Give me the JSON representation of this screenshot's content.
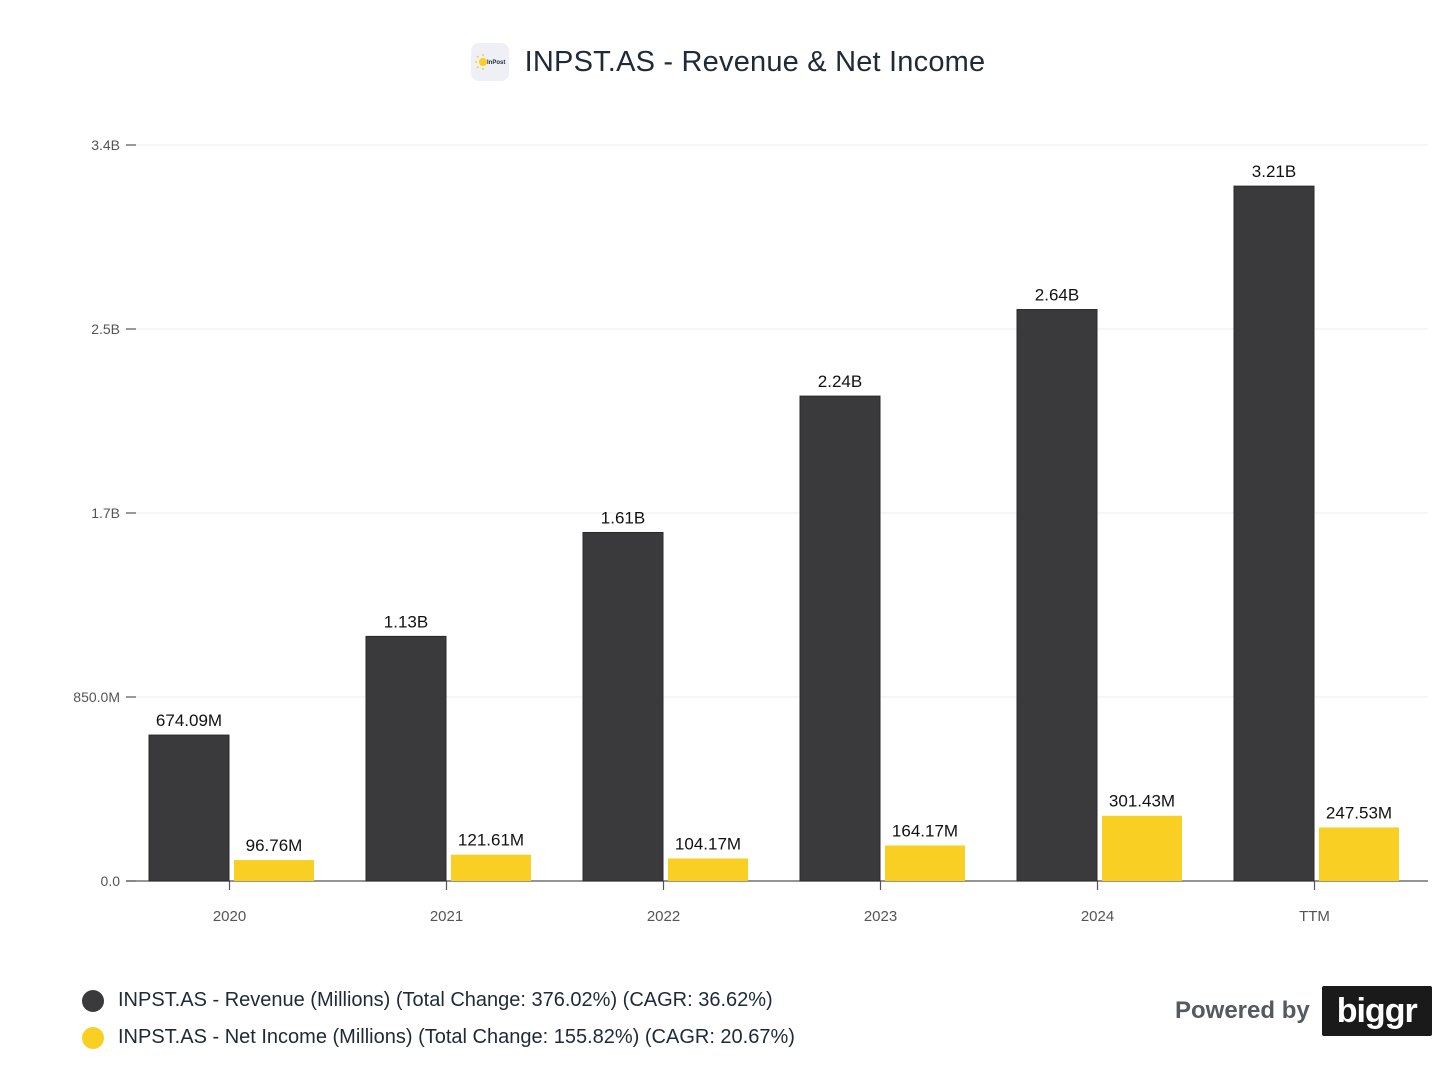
{
  "header": {
    "title": "INPST.AS - Revenue & Net Income",
    "logo_text": "InPost"
  },
  "chart_data": {
    "type": "bar",
    "title": "INPST.AS - Revenue & Net Income",
    "categories": [
      "2020",
      "2021",
      "2022",
      "2023",
      "2024",
      "TTM"
    ],
    "series": [
      {
        "name": "INPST.AS - Revenue (Millions) (Total Change: 376.02%) (CAGR: 36.62%)",
        "color": "#3a3a3c",
        "values": [
          674.09,
          1130,
          1610,
          2240,
          2640,
          3210
        ],
        "labels": [
          "674.09M",
          "1.13B",
          "1.61B",
          "2.24B",
          "2.64B",
          "3.21B"
        ]
      },
      {
        "name": "INPST.AS - Net Income (Millions) (Total Change: 155.82%) (CAGR: 20.67%)",
        "color": "#f9cf23",
        "values": [
          96.76,
          121.61,
          104.17,
          164.17,
          301.43,
          247.53
        ],
        "labels": [
          "96.76M",
          "121.61M",
          "104.17M",
          "164.17M",
          "301.43M",
          "247.53M"
        ]
      }
    ],
    "yticks": [
      0,
      850,
      1700,
      2550,
      3400
    ],
    "ytick_labels": [
      "0.0",
      "850.0M",
      "1.7B",
      "2.5B",
      "3.4B"
    ],
    "ylim": [
      0,
      3400
    ],
    "grid": true,
    "legend_position": "bottom-left"
  },
  "legend": {
    "revenue": "INPST.AS - Revenue (Millions) (Total Change: 376.02%) (CAGR: 36.62%)",
    "net_income": "INPST.AS - Net Income (Millions) (Total Change: 155.82%) (CAGR: 20.67%)"
  },
  "branding": {
    "powered_by": "Powered by",
    "brand": "biggr"
  }
}
